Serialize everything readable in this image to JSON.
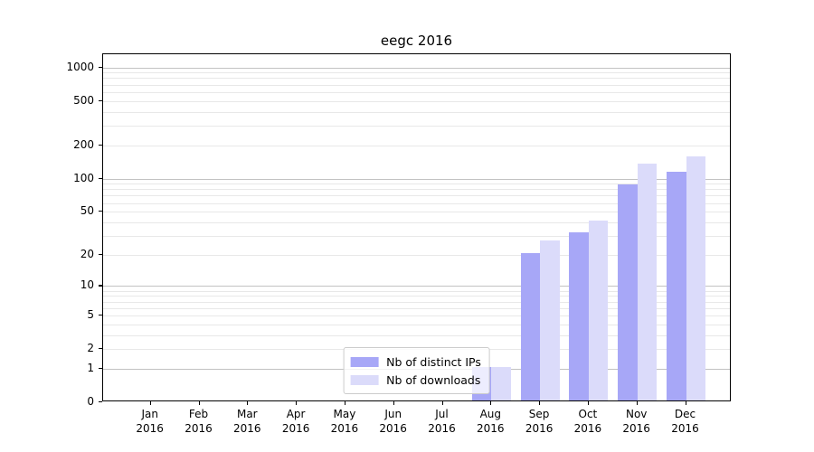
{
  "title": "eegc 2016",
  "chart_data": {
    "type": "bar",
    "title": "eegc 2016",
    "categories": [
      "Jan 2016",
      "Feb 2016",
      "Mar 2016",
      "Apr 2016",
      "May 2016",
      "Jun 2016",
      "Jul 2016",
      "Aug 2016",
      "Sep 2016",
      "Oct 2016",
      "Nov 2016",
      "Dec 2016"
    ],
    "series": [
      {
        "name": "Nb of distinct IPs",
        "color": "#a7a7f7",
        "values": [
          0,
          0,
          0,
          0,
          0,
          0,
          0,
          1,
          20,
          31,
          85,
          110
        ]
      },
      {
        "name": "Nb of downloads",
        "color": "#dbdbfa",
        "values": [
          0,
          0,
          0,
          0,
          0,
          0,
          0,
          1,
          26,
          40,
          132,
          153
        ]
      }
    ],
    "yscale": "log1p",
    "ylim": [
      0,
      1310
    ],
    "ytick_values": [
      0,
      1,
      2,
      5,
      10,
      20,
      50,
      100,
      200,
      500,
      1000
    ],
    "major_grid_values": [
      1,
      10,
      100,
      1000
    ],
    "minor_grid_values": [
      2,
      3,
      4,
      5,
      6,
      7,
      8,
      9,
      20,
      30,
      40,
      50,
      60,
      70,
      80,
      90,
      200,
      300,
      400,
      500,
      600,
      700,
      800,
      900
    ],
    "grid": "horizontal",
    "legend_position": "lower center",
    "xlabel": "",
    "ylabel": ""
  },
  "colors": {
    "series_dark": "#a7a7f7",
    "series_light": "#dbdbfa",
    "grid_minor": "#e8e8e8",
    "grid_major": "#c2c2c2",
    "axis": "#000000",
    "background": "#ffffff"
  }
}
